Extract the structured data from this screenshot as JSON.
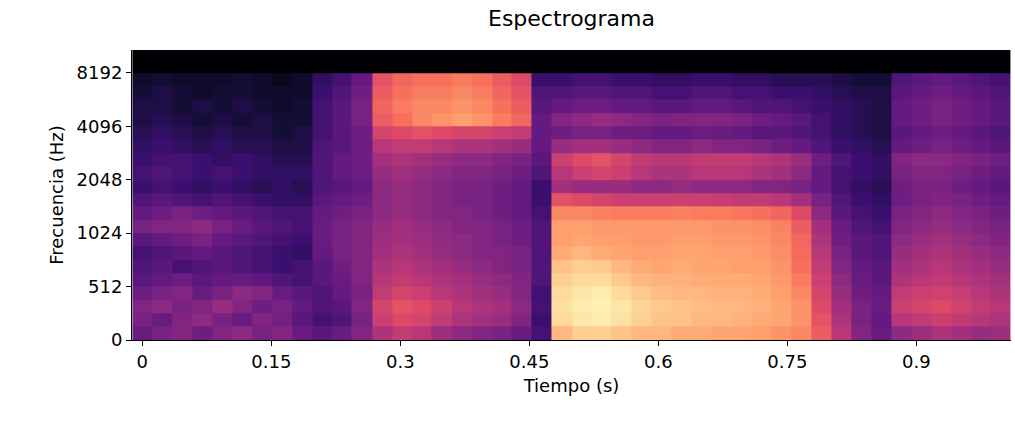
{
  "chart_data": {
    "type": "heatmap",
    "title": "Espectrograma",
    "x_label": "Tiempo (s)",
    "y_label": "Frecuencia (Hz)",
    "log": "y",
    "color": "magma",
    "grid": false,
    "xlim": [
      -0.012,
      1.01
    ],
    "xticks": [
      0,
      0.15,
      0.3,
      0.45,
      0.6,
      0.75,
      0.9
    ],
    "ylim": [
      0,
      11025
    ],
    "yticks": [
      0,
      512,
      1024,
      2048,
      4096,
      8192
    ],
    "zlim": [
      -80,
      0
    ],
    "x": [
      0,
      0.023,
      0.046,
      0.07,
      0.093,
      0.116,
      0.139,
      0.163,
      0.186,
      0.209,
      0.232,
      0.255,
      0.279,
      0.302,
      0.325,
      0.348,
      0.372,
      0.395,
      0.418,
      0.441,
      0.464,
      0.488,
      0.511,
      0.534,
      0.557,
      0.58,
      0.604,
      0.627,
      0.65,
      0.673,
      0.697,
      0.72,
      0.743,
      0.766,
      0.789,
      0.813,
      0.836,
      0.859,
      0.882,
      0.906,
      0.929,
      0.952,
      0.975,
      0.998
    ],
    "y": [
      64,
      192,
      320,
      448,
      558,
      664,
      790,
      939,
      1117,
      1328,
      1579,
      1878,
      2233,
      2656,
      3158,
      3756,
      4467,
      5312,
      6317,
      7512,
      8933,
      10623
    ],
    "z": [
      [
        -55,
        -52,
        -50,
        -54,
        -50,
        -48,
        -52,
        -50,
        -55,
        -58,
        -55,
        -50,
        -42,
        -38,
        -40,
        -45,
        -48,
        -50,
        -52,
        -55,
        -62,
        -12,
        -8,
        -8,
        -10,
        -12,
        -12,
        -14,
        -14,
        -15,
        -15,
        -16,
        -18,
        -20,
        -28,
        -40,
        -50,
        -55,
        -48,
        -45,
        -42,
        -44,
        -46,
        -45
      ],
      [
        -52,
        -55,
        -50,
        -48,
        -52,
        -55,
        -50,
        -53,
        -58,
        -62,
        -60,
        -52,
        -36,
        -32,
        -34,
        -38,
        -42,
        -44,
        -46,
        -50,
        -64,
        -6,
        -4,
        -3,
        -5,
        -8,
        -10,
        -10,
        -12,
        -12,
        -13,
        -14,
        -15,
        -18,
        -30,
        -42,
        -52,
        -56,
        -40,
        -38,
        -36,
        -38,
        -40,
        -42
      ],
      [
        -50,
        -48,
        -52,
        -50,
        -46,
        -50,
        -54,
        -52,
        -56,
        -60,
        -58,
        -50,
        -34,
        -30,
        -32,
        -36,
        -40,
        -42,
        -44,
        -48,
        -62,
        -5,
        -3,
        -2,
        -4,
        -7,
        -9,
        -10,
        -11,
        -12,
        -12,
        -13,
        -15,
        -18,
        -32,
        -44,
        -52,
        -55,
        -36,
        -34,
        -32,
        -35,
        -38,
        -40
      ],
      [
        -54,
        -52,
        -50,
        -55,
        -52,
        -48,
        -50,
        -55,
        -58,
        -60,
        -56,
        -52,
        -38,
        -34,
        -36,
        -40,
        -42,
        -44,
        -46,
        -50,
        -63,
        -6,
        -4,
        -3,
        -6,
        -9,
        -11,
        -12,
        -12,
        -13,
        -13,
        -14,
        -16,
        -20,
        -34,
        -46,
        -54,
        -56,
        -38,
        -36,
        -35,
        -37,
        -40,
        -42
      ],
      [
        -58,
        -56,
        -54,
        -58,
        -56,
        -55,
        -57,
        -60,
        -62,
        -58,
        -55,
        -50,
        -40,
        -38,
        -40,
        -42,
        -44,
        -46,
        -48,
        -50,
        -60,
        -8,
        -6,
        -6,
        -9,
        -12,
        -13,
        -13,
        -14,
        -14,
        -14,
        -15,
        -17,
        -22,
        -36,
        -48,
        -55,
        -58,
        -42,
        -40,
        -38,
        -40,
        -42,
        -44
      ],
      [
        -60,
        -58,
        -62,
        -60,
        -58,
        -60,
        -62,
        -64,
        -62,
        -58,
        -54,
        -50,
        -42,
        -40,
        -42,
        -44,
        -46,
        -48,
        -50,
        -52,
        -60,
        -10,
        -8,
        -9,
        -12,
        -14,
        -15,
        -14,
        -15,
        -15,
        -16,
        -16,
        -18,
        -24,
        -38,
        -50,
        -56,
        -58,
        -44,
        -42,
        -40,
        -42,
        -44,
        -46
      ],
      [
        -62,
        -60,
        -58,
        -56,
        -58,
        -60,
        -62,
        -64,
        -66,
        -56,
        -52,
        -50,
        -44,
        -42,
        -44,
        -46,
        -48,
        -50,
        -50,
        -52,
        -60,
        -14,
        -12,
        -14,
        -15,
        -16,
        -16,
        -15,
        -15,
        -16,
        -16,
        -17,
        -19,
        -25,
        -40,
        -52,
        -58,
        -60,
        -46,
        -44,
        -42,
        -44,
        -46,
        -48
      ],
      [
        -58,
        -56,
        -54,
        -52,
        -56,
        -58,
        -60,
        -62,
        -64,
        -55,
        -52,
        -50,
        -45,
        -44,
        -45,
        -47,
        -48,
        -50,
        -52,
        -54,
        -60,
        -16,
        -15,
        -16,
        -16,
        -17,
        -17,
        -16,
        -16,
        -17,
        -17,
        -18,
        -20,
        -26,
        -42,
        -54,
        -58,
        -60,
        -48,
        -46,
        -44,
        -46,
        -48,
        -50
      ],
      [
        -52,
        -50,
        -50,
        -48,
        -52,
        -55,
        -58,
        -60,
        -62,
        -55,
        -52,
        -50,
        -46,
        -44,
        -46,
        -48,
        -50,
        -50,
        -52,
        -54,
        -60,
        -16,
        -16,
        -17,
        -17,
        -17,
        -17,
        -17,
        -17,
        -18,
        -18,
        -19,
        -21,
        -28,
        -44,
        -55,
        -60,
        -62,
        -50,
        -48,
        -46,
        -48,
        -50,
        -52
      ],
      [
        -56,
        -54,
        -52,
        -54,
        -56,
        -58,
        -60,
        -62,
        -62,
        -56,
        -54,
        -52,
        -48,
        -46,
        -48,
        -50,
        -50,
        -52,
        -54,
        -56,
        -62,
        -20,
        -20,
        -21,
        -22,
        -22,
        -22,
        -21,
        -22,
        -22,
        -23,
        -24,
        -26,
        -32,
        -48,
        -58,
        -62,
        -64,
        -52,
        -50,
        -48,
        -50,
        -52,
        -54
      ],
      [
        -60,
        -58,
        -60,
        -62,
        -60,
        -62,
        -64,
        -66,
        -66,
        -58,
        -56,
        -54,
        -48,
        -46,
        -48,
        -50,
        -52,
        -52,
        -54,
        -56,
        -64,
        -30,
        -32,
        -34,
        -36,
        -36,
        -36,
        -36,
        -36,
        -37,
        -38,
        -38,
        -40,
        -44,
        -52,
        -60,
        -64,
        -66,
        -54,
        -52,
        -50,
        -52,
        -54,
        -56
      ],
      [
        -64,
        -62,
        -64,
        -66,
        -64,
        -66,
        -68,
        -66,
        -68,
        -60,
        -58,
        -56,
        -48,
        -46,
        -48,
        -50,
        -52,
        -52,
        -54,
        -56,
        -64,
        -44,
        -46,
        -46,
        -46,
        -48,
        -48,
        -46,
        -48,
        -48,
        -48,
        -50,
        -50,
        -52,
        -56,
        -62,
        -66,
        -68,
        -54,
        -52,
        -52,
        -54,
        -56,
        -58
      ],
      [
        -62,
        -60,
        -62,
        -64,
        -62,
        -64,
        -66,
        -66,
        -66,
        -60,
        -56,
        -54,
        -46,
        -44,
        -46,
        -48,
        -50,
        -50,
        -52,
        -54,
        -60,
        -40,
        -36,
        -34,
        -36,
        -40,
        -42,
        -42,
        -40,
        -40,
        -40,
        -42,
        -44,
        -48,
        -56,
        -62,
        -64,
        -66,
        -52,
        -50,
        -50,
        -52,
        -54,
        -56
      ],
      [
        -64,
        -62,
        -62,
        -64,
        -66,
        -64,
        -66,
        -68,
        -68,
        -60,
        -56,
        -54,
        -44,
        -42,
        -44,
        -46,
        -48,
        -48,
        -50,
        -52,
        -58,
        -36,
        -32,
        -30,
        -34,
        -38,
        -40,
        -40,
        -38,
        -38,
        -38,
        -40,
        -42,
        -46,
        -54,
        -60,
        -64,
        -66,
        -50,
        -48,
        -48,
        -50,
        -52,
        -54
      ],
      [
        -66,
        -64,
        -66,
        -68,
        -66,
        -68,
        -68,
        -70,
        -70,
        -60,
        -58,
        -54,
        -40,
        -38,
        -38,
        -40,
        -42,
        -42,
        -44,
        -46,
        -56,
        -46,
        -44,
        -44,
        -46,
        -48,
        -50,
        -50,
        -48,
        -50,
        -50,
        -52,
        -54,
        -56,
        -60,
        -64,
        -66,
        -68,
        -56,
        -54,
        -52,
        -54,
        -56,
        -58
      ],
      [
        -68,
        -66,
        -68,
        -70,
        -68,
        -70,
        -70,
        -72,
        -70,
        -62,
        -58,
        -54,
        -34,
        -32,
        -30,
        -32,
        -34,
        -34,
        -36,
        -38,
        -56,
        -54,
        -52,
        -52,
        -54,
        -54,
        -56,
        -56,
        -54,
        -55,
        -56,
        -58,
        -58,
        -60,
        -62,
        -66,
        -68,
        -70,
        -58,
        -56,
        -54,
        -56,
        -58,
        -60
      ],
      [
        -70,
        -68,
        -70,
        -72,
        -70,
        -72,
        -70,
        -72,
        -72,
        -62,
        -58,
        -52,
        -28,
        -24,
        -20,
        -18,
        -16,
        -18,
        -22,
        -26,
        -56,
        -50,
        -48,
        -46,
        -48,
        -50,
        -52,
        -50,
        -50,
        -50,
        -52,
        -54,
        -56,
        -58,
        -62,
        -66,
        -68,
        -70,
        -56,
        -54,
        -52,
        -54,
        -56,
        -58
      ],
      [
        -70,
        -70,
        -72,
        -70,
        -72,
        -70,
        -72,
        -74,
        -72,
        -62,
        -58,
        -52,
        -26,
        -22,
        -20,
        -20,
        -18,
        -20,
        -24,
        -28,
        -58,
        -56,
        -54,
        -54,
        -56,
        -56,
        -58,
        -58,
        -56,
        -56,
        -58,
        -60,
        -60,
        -62,
        -64,
        -66,
        -68,
        -70,
        -56,
        -54,
        -52,
        -54,
        -56,
        -58
      ],
      [
        -72,
        -70,
        -72,
        -74,
        -72,
        -72,
        -74,
        -74,
        -74,
        -64,
        -60,
        -54,
        -28,
        -24,
        -22,
        -22,
        -20,
        -22,
        -26,
        -30,
        -60,
        -60,
        -58,
        -58,
        -60,
        -60,
        -62,
        -62,
        -60,
        -60,
        -62,
        -62,
        -64,
        -64,
        -66,
        -68,
        -70,
        -70,
        -58,
        -56,
        -54,
        -56,
        -58,
        -60
      ],
      [
        -74,
        -72,
        -74,
        -74,
        -74,
        -72,
        -74,
        -76,
        -74,
        -66,
        -62,
        -56,
        -30,
        -26,
        -24,
        -24,
        -22,
        -24,
        -28,
        -32,
        -64,
        -64,
        -62,
        -62,
        -64,
        -64,
        -66,
        -66,
        -64,
        -64,
        -66,
        -66,
        -68,
        -68,
        -68,
        -70,
        -72,
        -72,
        -60,
        -58,
        -56,
        -58,
        -60,
        -62
      ],
      [
        -80,
        -80,
        -80,
        -80,
        -80,
        -80,
        -80,
        -80,
        -80,
        -80,
        -80,
        -80,
        -80,
        -80,
        -80,
        -80,
        -80,
        -80,
        -80,
        -80,
        -80,
        -80,
        -80,
        -80,
        -80,
        -80,
        -80,
        -80,
        -80,
        -80,
        -80,
        -80,
        -80,
        -80,
        -80,
        -80,
        -80,
        -80,
        -80,
        -80,
        -80,
        -80,
        -80,
        -80
      ],
      [
        -80,
        -80,
        -80,
        -80,
        -80,
        -80,
        -80,
        -80,
        -80,
        -80,
        -80,
        -80,
        -80,
        -80,
        -80,
        -80,
        -80,
        -80,
        -80,
        -80,
        -80,
        -80,
        -80,
        -80,
        -80,
        -80,
        -80,
        -80,
        -80,
        -80,
        -80,
        -80,
        -80,
        -80,
        -80,
        -80,
        -80,
        -80,
        -80,
        -80,
        -80,
        -80,
        -80,
        -80
      ]
    ]
  }
}
